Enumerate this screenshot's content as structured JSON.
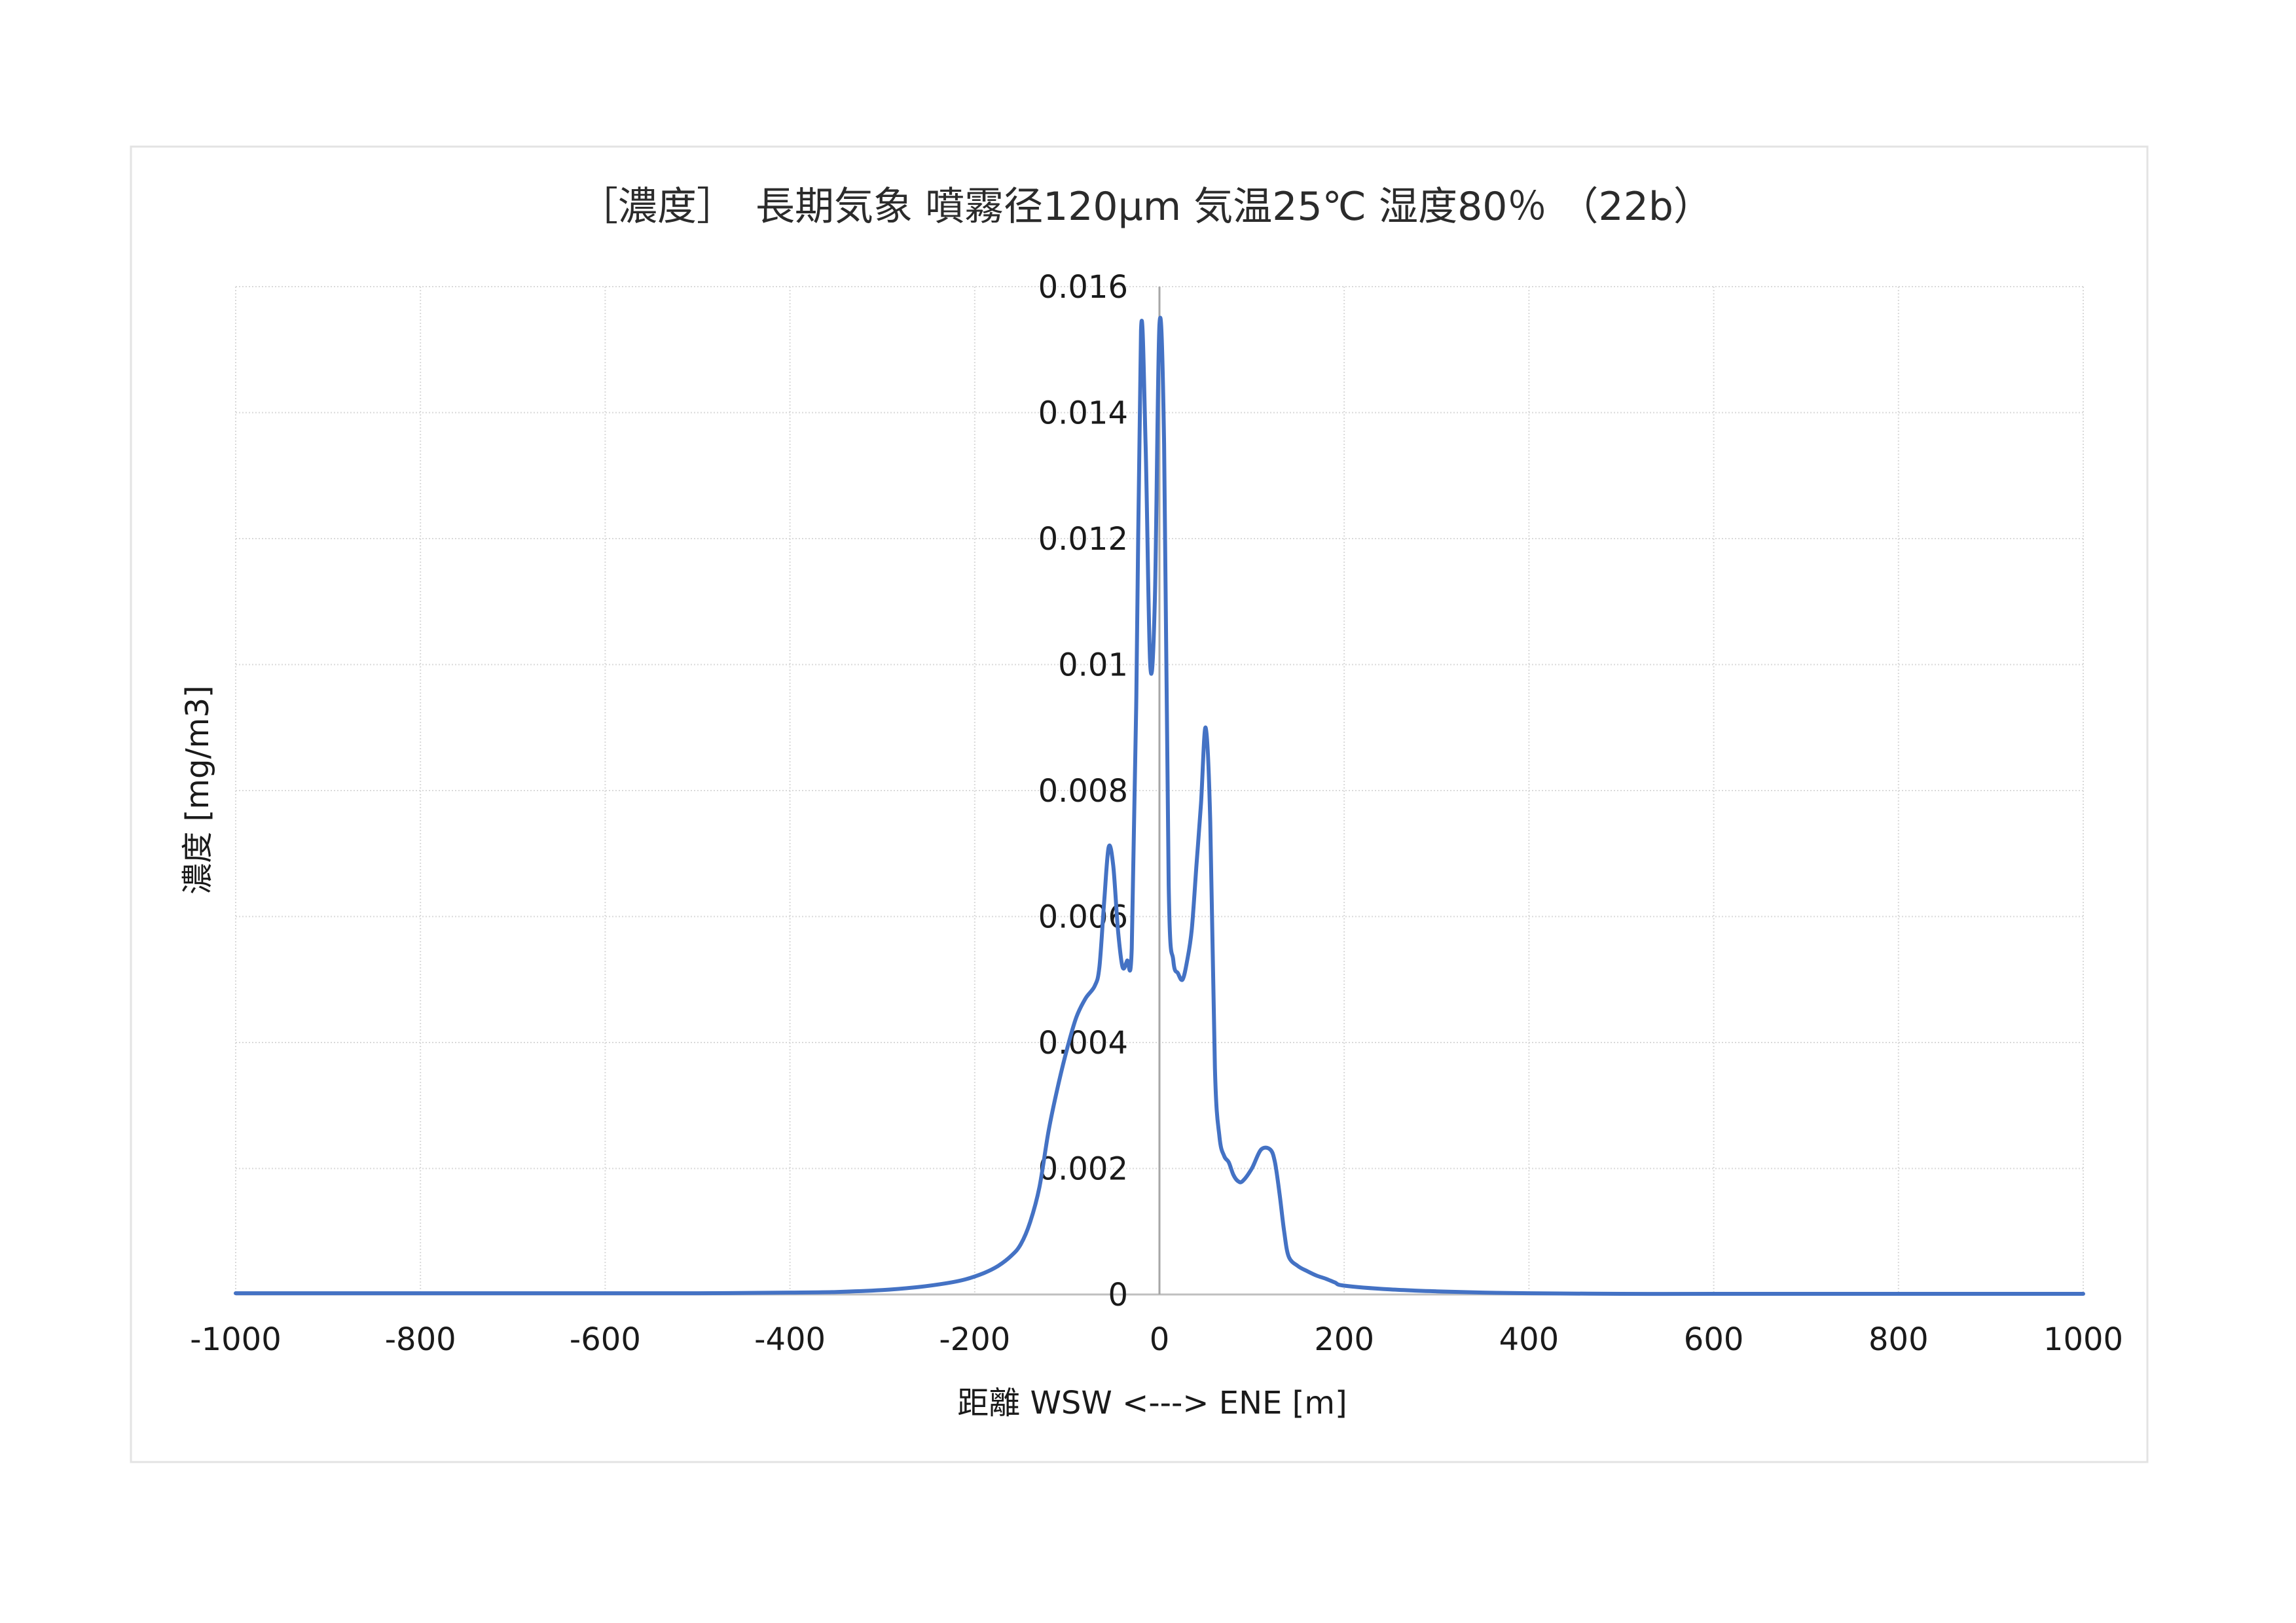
{
  "chart_data": {
    "type": "line",
    "title": "［濃度］　長期気象 噴霧径120μm 気温25℃ 湿度80％ （22b）",
    "xlabel": "距離  WSW <---> ENE [m]",
    "ylabel": "濃度 [mg/m3]",
    "xlim": [
      -1000,
      1000
    ],
    "ylim": [
      0,
      0.016
    ],
    "x_ticks": [
      -1000,
      -800,
      -600,
      -400,
      -200,
      0,
      200,
      400,
      600,
      800,
      1000
    ],
    "x_tick_labels": [
      "-1000",
      "-800",
      "-600",
      "-400",
      "-200",
      "0",
      "200",
      "400",
      "600",
      "800",
      "1000"
    ],
    "y_ticks": [
      0,
      0.002,
      0.004,
      0.006,
      0.008,
      0.01,
      0.012,
      0.014,
      0.016
    ],
    "y_tick_labels": [
      "0",
      "0.002",
      "0.004",
      "0.006",
      "0.008",
      "0.01",
      "0.012",
      "0.014",
      "0.016"
    ],
    "grid": true,
    "legend": "none",
    "series_color": "#4472c4",
    "series": [
      {
        "x": [
          -1000,
          -800,
          -600,
          -500,
          -400,
          -350,
          -300,
          -260,
          -230,
          -210,
          -190,
          -175,
          -160,
          -150,
          -140,
          -130,
          -120,
          -110,
          -100,
          -90,
          -80,
          -70,
          -65,
          -60,
          -55,
          -50,
          -45,
          -40,
          -35,
          -30,
          -25,
          -20,
          -15,
          -10,
          -5,
          0,
          5,
          10,
          15,
          20,
          25,
          30,
          35,
          40,
          45,
          50,
          55,
          60,
          65,
          70,
          75,
          80,
          85,
          90,
          100,
          110,
          120,
          125,
          130,
          135,
          140,
          150,
          160,
          170,
          180,
          190,
          200,
          250,
          300,
          350,
          400,
          500,
          600,
          800,
          1000
        ],
        "y": [
          2e-05,
          2e-05,
          2e-05,
          2e-05,
          3e-05,
          4e-05,
          7e-05,
          0.00012,
          0.00018,
          0.00024,
          0.00034,
          0.00045,
          0.00062,
          0.0008,
          0.00115,
          0.0017,
          0.0026,
          0.0033,
          0.0039,
          0.0044,
          0.0047,
          0.0049,
          0.0052,
          0.0062,
          0.0071,
          0.0068,
          0.0058,
          0.0052,
          0.0053,
          0.0055,
          0.0095,
          0.0153,
          0.0135,
          0.01,
          0.011,
          0.0154,
          0.0135,
          0.0065,
          0.0053,
          0.0051,
          0.005,
          0.0053,
          0.0058,
          0.0068,
          0.0078,
          0.009,
          0.0075,
          0.0036,
          0.0025,
          0.0022,
          0.0021,
          0.0019,
          0.0018,
          0.0018,
          0.002,
          0.0023,
          0.0023,
          0.0021,
          0.0016,
          0.001,
          0.0006,
          0.00045,
          0.00037,
          0.0003,
          0.00025,
          0.00019,
          0.00014,
          8e-05,
          5e-05,
          3e-05,
          2e-05,
          1e-05,
          1e-05,
          1e-05,
          1e-05
        ]
      }
    ]
  }
}
